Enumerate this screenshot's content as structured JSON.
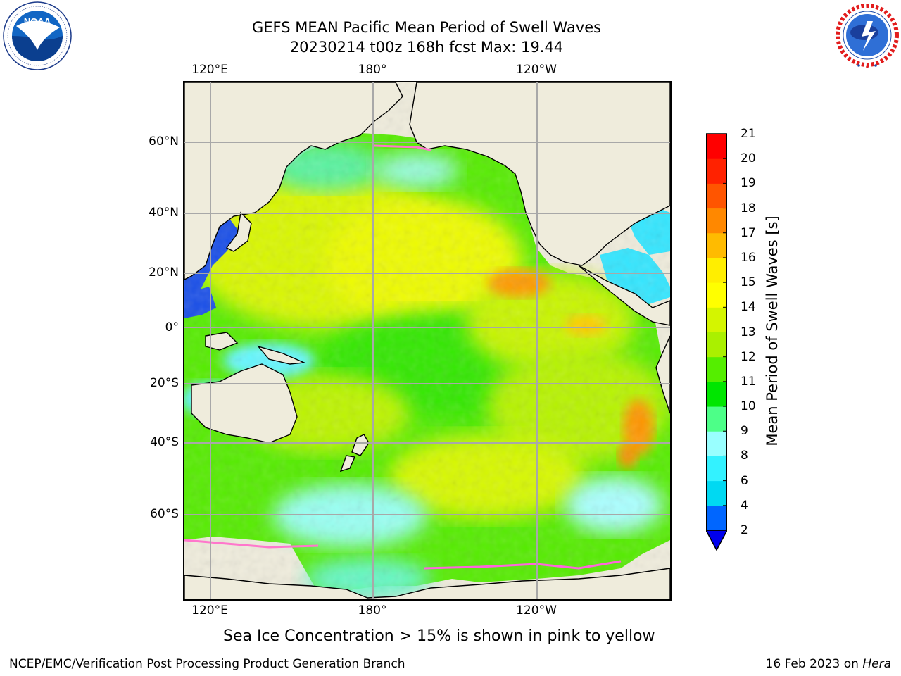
{
  "header": {
    "title_line1": "GEFS MEAN Pacific Mean Period of Swell Waves",
    "title_line2": "20230214 t00z 168h fcst   Max: 19.44"
  },
  "logos": {
    "left": {
      "name": "NOAA",
      "ring_text": "NATIONAL OCEANIC AND ATMOSPHERIC ADMINISTRATION · U.S. DEPARTMENT OF COMMERCE"
    },
    "right": {
      "name": "NATIONAL WEATHER SERVICE"
    }
  },
  "map": {
    "lon_labels": [
      "120°E",
      "180°",
      "120°W"
    ],
    "lat_labels": [
      "60°N",
      "40°N",
      "20°N",
      "0°",
      "20°S",
      "40°S",
      "60°S"
    ],
    "colors": {
      "land": "#efecdc",
      "frame": "#000000",
      "grid": "#aaaaaa"
    }
  },
  "chart_data": {
    "type": "heatmap",
    "title": "GEFS MEAN Pacific Mean Period of Swell Waves",
    "subtitle": "20230214 t00z 168h fcst   Max: 19.44",
    "variable": "Mean Period of Swell Waves [s]",
    "max": 19.44,
    "levels": [
      2,
      4,
      6,
      8,
      9,
      10,
      11,
      12,
      13,
      14,
      15,
      16,
      17,
      18,
      19,
      20,
      21
    ],
    "level_colors": [
      "#0066ff",
      "#00d9f2",
      "#33f2ff",
      "#99ffff",
      "#4dff88",
      "#00e600",
      "#55ee00",
      "#aaf000",
      "#d4f500",
      "#ffff00",
      "#ffee00",
      "#ffbb00",
      "#ff8800",
      "#ff5500",
      "#ff2200",
      "#ff0000"
    ],
    "under_color": "#0000ee",
    "colorbar_ticks": [
      "21",
      "20",
      "19",
      "18",
      "17",
      "16",
      "15",
      "14",
      "13",
      "12",
      "11",
      "10",
      "9",
      "8",
      "6",
      "4",
      "2"
    ],
    "colorbar_label": "Mean Period of Swell Waves [s]",
    "extend": "min"
  },
  "notes": {
    "sea_ice": "Sea Ice Concentration > 15% is shown in pink to yellow"
  },
  "footer": {
    "producer": "NCEP/EMC/Verification Post Processing Product Generation Branch",
    "date_prefix": "16 Feb 2023 on ",
    "host": "Hera"
  }
}
